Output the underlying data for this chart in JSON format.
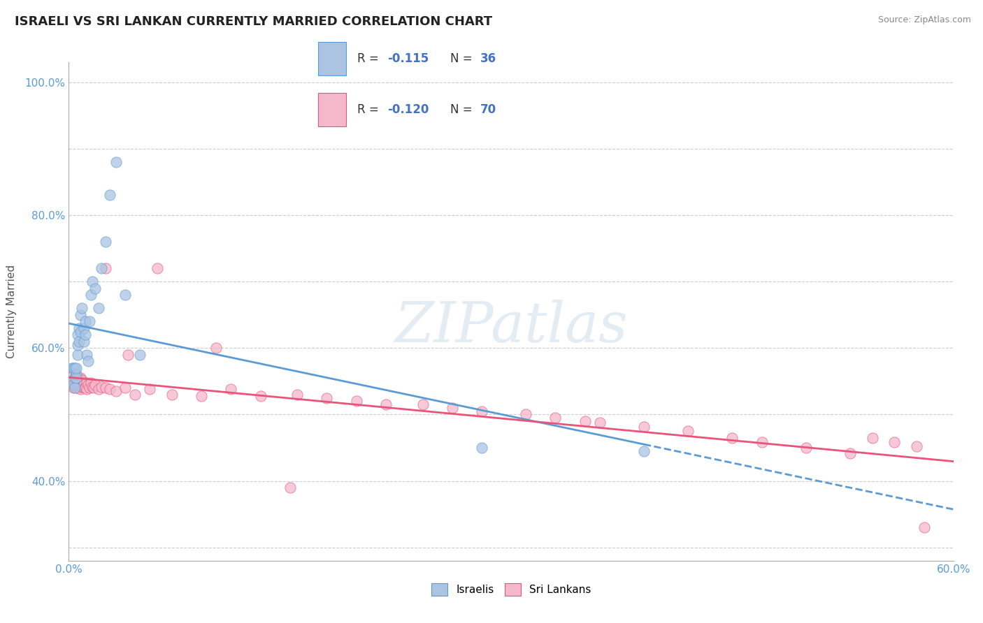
{
  "title": "ISRAELI VS SRI LANKAN CURRENTLY MARRIED CORRELATION CHART",
  "source_text": "Source: ZipAtlas.com",
  "ylabel": "Currently Married",
  "xlim": [
    0.0,
    0.6
  ],
  "ylim": [
    0.28,
    1.03
  ],
  "x_ticks": [
    0.0,
    0.1,
    0.2,
    0.3,
    0.4,
    0.5,
    0.6
  ],
  "x_tick_labels": [
    "0.0%",
    "",
    "",
    "",
    "",
    "",
    "60.0%"
  ],
  "y_ticks": [
    0.3,
    0.4,
    0.5,
    0.6,
    0.7,
    0.8,
    0.9,
    1.0
  ],
  "y_tick_labels": [
    "",
    "40.0%",
    "",
    "60.0%",
    "",
    "80.0%",
    "",
    "100.0%"
  ],
  "israeli_color": "#aac4e2",
  "srilankan_color": "#f5b8cb",
  "israeli_edge_color": "#5b9bd5",
  "srilankan_edge_color": "#e8547a",
  "israeli_line_color": "#5b9bd5",
  "srilankan_line_color": "#e8547a",
  "watermark_text": "ZIPatlas",
  "israeli_x": [
    0.002,
    0.003,
    0.003,
    0.004,
    0.004,
    0.004,
    0.005,
    0.005,
    0.005,
    0.006,
    0.006,
    0.006,
    0.007,
    0.007,
    0.008,
    0.008,
    0.009,
    0.01,
    0.01,
    0.011,
    0.011,
    0.012,
    0.013,
    0.014,
    0.015,
    0.016,
    0.018,
    0.02,
    0.022,
    0.025,
    0.028,
    0.032,
    0.038,
    0.048,
    0.28,
    0.39
  ],
  "israeli_y": [
    0.57,
    0.57,
    0.545,
    0.57,
    0.555,
    0.54,
    0.56,
    0.555,
    0.57,
    0.59,
    0.605,
    0.62,
    0.61,
    0.63,
    0.625,
    0.65,
    0.66,
    0.63,
    0.61,
    0.64,
    0.62,
    0.59,
    0.58,
    0.64,
    0.68,
    0.7,
    0.69,
    0.66,
    0.72,
    0.76,
    0.83,
    0.88,
    0.68,
    0.59,
    0.45,
    0.445
  ],
  "srilankan_x": [
    0.002,
    0.003,
    0.003,
    0.004,
    0.004,
    0.005,
    0.005,
    0.005,
    0.006,
    0.006,
    0.006,
    0.007,
    0.007,
    0.007,
    0.008,
    0.008,
    0.008,
    0.009,
    0.009,
    0.01,
    0.01,
    0.01,
    0.011,
    0.011,
    0.012,
    0.012,
    0.013,
    0.014,
    0.015,
    0.016,
    0.017,
    0.018,
    0.02,
    0.022,
    0.025,
    0.028,
    0.032,
    0.038,
    0.045,
    0.055,
    0.07,
    0.09,
    0.11,
    0.13,
    0.155,
    0.175,
    0.195,
    0.215,
    0.24,
    0.26,
    0.28,
    0.31,
    0.33,
    0.36,
    0.39,
    0.42,
    0.45,
    0.47,
    0.5,
    0.53,
    0.545,
    0.56,
    0.575,
    0.025,
    0.04,
    0.06,
    0.1,
    0.15,
    0.35,
    0.58
  ],
  "srilankan_y": [
    0.545,
    0.56,
    0.54,
    0.555,
    0.545,
    0.56,
    0.545,
    0.54,
    0.555,
    0.545,
    0.54,
    0.555,
    0.545,
    0.54,
    0.555,
    0.545,
    0.538,
    0.552,
    0.542,
    0.548,
    0.54,
    0.545,
    0.542,
    0.54,
    0.548,
    0.538,
    0.545,
    0.54,
    0.548,
    0.542,
    0.54,
    0.545,
    0.538,
    0.542,
    0.54,
    0.538,
    0.535,
    0.54,
    0.53,
    0.538,
    0.53,
    0.528,
    0.538,
    0.528,
    0.53,
    0.525,
    0.52,
    0.515,
    0.515,
    0.51,
    0.505,
    0.5,
    0.495,
    0.488,
    0.482,
    0.475,
    0.465,
    0.458,
    0.45,
    0.442,
    0.465,
    0.458,
    0.452,
    0.72,
    0.59,
    0.72,
    0.6,
    0.39,
    0.49,
    0.33
  ]
}
